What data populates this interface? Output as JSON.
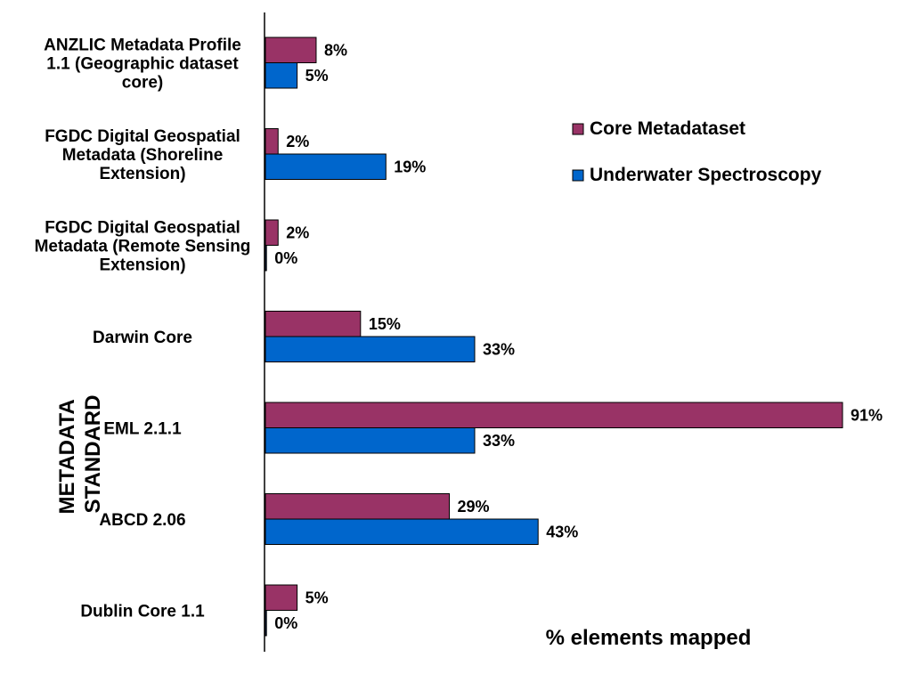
{
  "chart_data": {
    "type": "bar",
    "orientation": "horizontal",
    "title": "",
    "xlabel": "% elements mapped",
    "ylabel": "METADATA STANDARD",
    "xlim": [
      0,
      100
    ],
    "categories": [
      "ANZLIC Metadata Profile 1.1 (Geographic dataset core)",
      "FGDC Digital Geospatial Metadata (Shoreline Extension)",
      "FGDC Digital Geospatial Metadata (Remote Sensing Extension)",
      "Darwin Core",
      "EML 2.1.1",
      "ABCD 2.06",
      "Dublin Core 1.1"
    ],
    "category_lines": [
      [
        "ANZLIC Metadata Profile",
        "1.1 (Geographic dataset",
        "core)"
      ],
      [
        "FGDC Digital Geospatial",
        "Metadata (Shoreline",
        "Extension)"
      ],
      [
        "FGDC Digital Geospatial",
        "Metadata (Remote Sensing",
        "Extension)"
      ],
      [
        "Darwin Core"
      ],
      [
        "EML 2.1.1"
      ],
      [
        "ABCD 2.06"
      ],
      [
        "Dublin Core 1.1"
      ]
    ],
    "series": [
      {
        "name": "Core Metadataset",
        "color": "#993366",
        "values": [
          8,
          2,
          2,
          15,
          91,
          29,
          5
        ],
        "labels": [
          "8%",
          "2%",
          "2%",
          "15%",
          "91%",
          "29%",
          "5%"
        ]
      },
      {
        "name": "Underwater Spectroscopy",
        "color": "#0066CC",
        "values": [
          5,
          19,
          0,
          33,
          33,
          43,
          0
        ],
        "labels": [
          "5%",
          "19%",
          "0%",
          "33%",
          "33%",
          "43%",
          "0%"
        ]
      }
    ],
    "legend_position": "right",
    "grid": false
  }
}
